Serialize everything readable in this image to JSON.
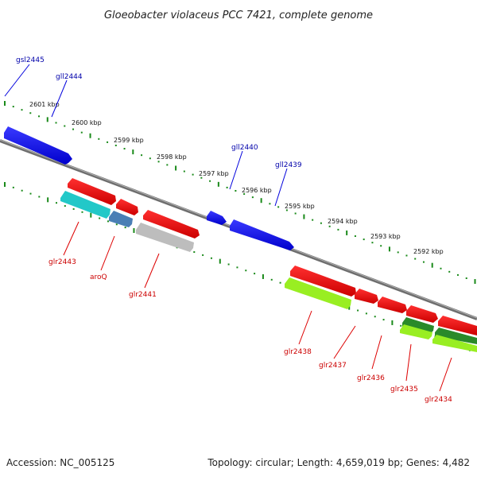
{
  "title": "Gloeobacter violaceus PCC 7421, complete genome",
  "footer": {
    "accession": "Accession: NC_005125",
    "summary": "Topology: circular; Length: 4,659,019 bp; Genes: 4,482"
  },
  "ruler_labels": [
    "2601 kbp",
    "2600 kbp",
    "2599 kbp",
    "2598 kbp",
    "2597 kbp",
    "2596 kbp",
    "2595 kbp",
    "2594 kbp",
    "2593 kbp",
    "2592 kbp"
  ],
  "genes_top": [
    {
      "id": "gsl2445",
      "color": "#0000aa"
    },
    {
      "id": "gll2444",
      "color": "#0000aa"
    },
    {
      "id": "gll2440",
      "color": "#0000aa"
    },
    {
      "id": "gll2439",
      "color": "#0000aa"
    }
  ],
  "genes_bottom": [
    {
      "id": "glr2443",
      "color": "#cc0000"
    },
    {
      "id": "aroQ",
      "color": "#cc0000"
    },
    {
      "id": "glr2441",
      "color": "#cc0000"
    },
    {
      "id": "glr2438",
      "color": "#cc0000"
    },
    {
      "id": "glr2437",
      "color": "#cc0000"
    },
    {
      "id": "glr2436",
      "color": "#cc0000"
    },
    {
      "id": "glr2435",
      "color": "#cc0000"
    },
    {
      "id": "glr2434",
      "color": "#cc0000"
    }
  ],
  "colors": {
    "forward_gene": "#0000ee",
    "reverse_gene": "#ee0000",
    "backbone": "#808080",
    "tick": "#1a8a1a",
    "cyan_feature": "#22c8c8",
    "steelblue_feature": "#4a7fb5",
    "gray_feature": "#bdbdbd",
    "lime_feature": "#99ee22",
    "darkgreen_feature": "#2a8a2a"
  }
}
